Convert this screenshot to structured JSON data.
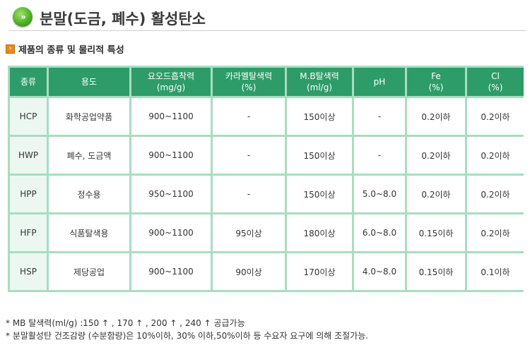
{
  "header": {
    "icon": "»",
    "title": "분말(도금, 폐수) 활성탄소"
  },
  "section": {
    "title": "제품의 종류 및 물리적 특성"
  },
  "table": {
    "headers": [
      {
        "label": "종류",
        "unit": ""
      },
      {
        "label": "용도",
        "unit": ""
      },
      {
        "label": "요오드흡착력",
        "unit": "(mg/g)"
      },
      {
        "label": "카라멜탈색력",
        "unit": "(%)"
      },
      {
        "label": "M.B탈색력",
        "unit": "(ml/g)"
      },
      {
        "label": "pH",
        "unit": ""
      },
      {
        "label": "Fe",
        "unit": "(%)"
      },
      {
        "label": "Cl",
        "unit": "(%)"
      }
    ],
    "rows": [
      [
        "HCP",
        "화학공업약품",
        "900~1100",
        "-",
        "150이상",
        "-",
        "0.2이하",
        "0.2이하"
      ],
      [
        "HWP",
        "폐수, 도금액",
        "900~1100",
        "-",
        "150이상",
        "-",
        "0.2이하",
        "0.2이하"
      ],
      [
        "HPP",
        "정수용",
        "950~1100",
        "-",
        "150이상",
        "5.0~8.0",
        "0.2이하",
        "0.2이하"
      ],
      [
        "HFP",
        "식품탈색용",
        "900~1100",
        "95이상",
        "180이상",
        "6.0~8.0",
        "0.15이하",
        "0.2이하"
      ],
      [
        "HSP",
        "제당공업",
        "900~1100",
        "90이상",
        "170이상",
        "4.0~8.0",
        "0.15이하",
        "0.1이하"
      ]
    ]
  },
  "notes": [
    "* MB 탈색력(ml/g) :150 ↑ , 170 ↑ , 200 ↑ , 240 ↑ 공급가능",
    "* 분말활성탄 건조감량 (수분함량)은 10%이하, 30% 이하,50%이하 등 수요자 요구에 의해 조절가능."
  ],
  "colors": {
    "header_bg": "#2e9c69",
    "table_border": "#a9dcc0",
    "accent_orange": "#e8891c",
    "icon_green": "#4fae2a"
  },
  "icons": {
    "header": "green-circle-arrow-icon",
    "section": "orange-square-arrow-icon"
  }
}
